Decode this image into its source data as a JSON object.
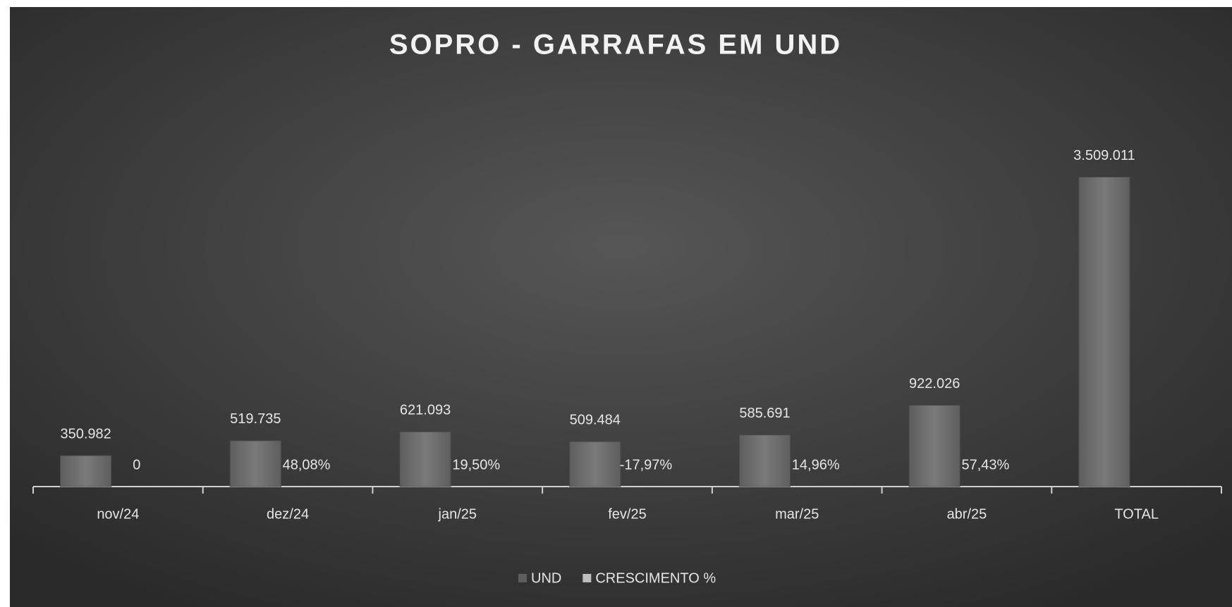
{
  "chart_data": {
    "type": "bar",
    "title": "SOPRO - GARRAFAS EM UND",
    "categories": [
      "nov/24",
      "dez/24",
      "jan/25",
      "fev/25",
      "mar/25",
      "abr/25",
      "TOTAL"
    ],
    "series": [
      {
        "name": "UND",
        "color": "#6e6e6e",
        "values": [
          350982,
          519735,
          621093,
          509484,
          585691,
          922026,
          3509011
        ],
        "value_labels": [
          "350.982",
          "519.735",
          "621.093",
          "509.484",
          "585.691",
          "922.026",
          "3.509.011"
        ]
      },
      {
        "name": "CRESCIMENTO %",
        "color": "#bdbdbd",
        "values": [
          0,
          48.08,
          19.5,
          -17.97,
          14.96,
          57.43,
          null
        ],
        "value_labels": [
          "0",
          "48,08%",
          "19,50%",
          "-17,97%",
          "14,96%",
          "57,43%",
          null
        ]
      }
    ],
    "ylim": [
      0,
      4000000
    ],
    "legend": "bottom"
  }
}
